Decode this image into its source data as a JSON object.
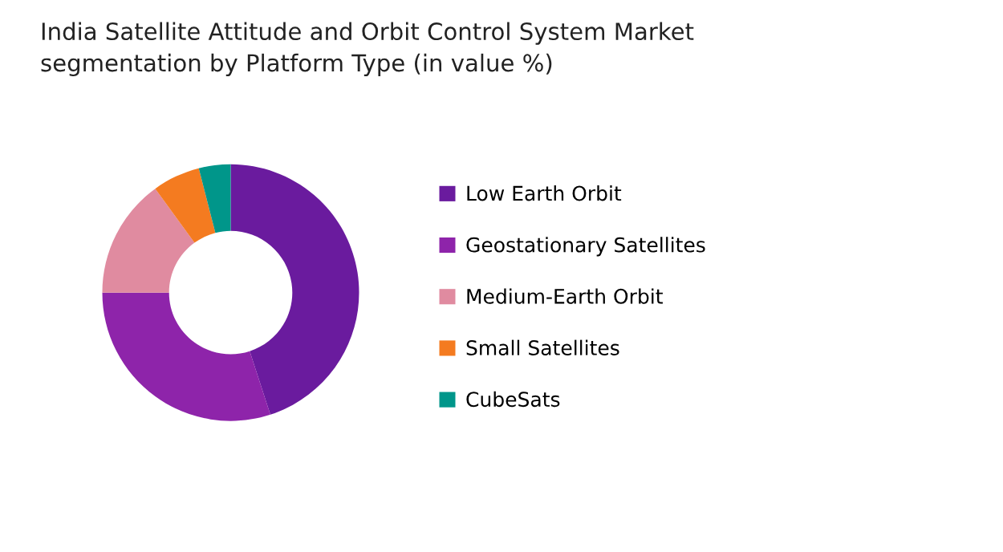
{
  "chart_data": {
    "type": "donut",
    "title": "India Satellite Attitude and Orbit Control System Market\nsegmentation by Platform Type (in value %)",
    "categories": [
      "Low Earth Orbit",
      "Geostationary Satellites",
      "Medium-Earth Orbit",
      "Small Satellites",
      "CubeSats"
    ],
    "values": [
      45,
      30,
      15,
      6,
      4
    ],
    "colors": [
      "#6a1b9e",
      "#8e24aa",
      "#e08ba0",
      "#f47b20",
      "#00968a"
    ],
    "legend": "right"
  }
}
